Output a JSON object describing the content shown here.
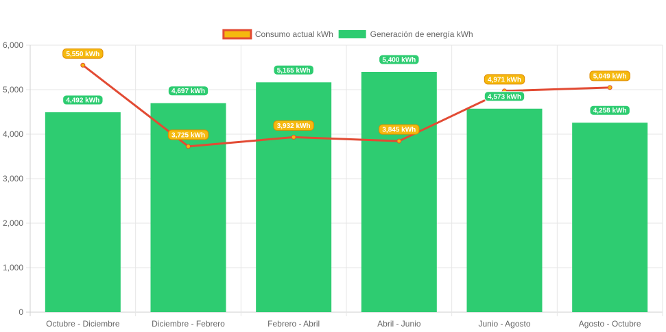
{
  "chart_data": {
    "type": "bar",
    "title": "",
    "xlabel": "",
    "ylabel": "",
    "categories": [
      "Octubre - Diciembre",
      "Diciembre - Febrero",
      "Febrero - Abril",
      "Abril - Junio",
      "Junio - Agosto",
      "Agosto - Octubre"
    ],
    "ylim": [
      0,
      6000
    ],
    "yticks": [
      "0",
      "1,000",
      "2,000",
      "3,000",
      "4,000",
      "5,000",
      "6,000"
    ],
    "grid": true,
    "legend_position": "top-center",
    "series": [
      {
        "name": "Consumo actual kWh",
        "type": "line",
        "color": "#e24b34",
        "fill": "#f5b90f",
        "values": [
          5550,
          3725,
          3932,
          3845,
          4971,
          5049
        ],
        "labels": [
          "5,550 kWh",
          "3,725 kWh",
          "3,932 kWh",
          "3,845 kWh",
          "4,971 kWh",
          "5,049 kWh"
        ]
      },
      {
        "name": "Generación de energía kWh",
        "type": "bar",
        "color": "#2ecc71",
        "values": [
          4492,
          4697,
          5165,
          5400,
          4573,
          4258
        ],
        "labels": [
          "4,492 kWh",
          "4,697 kWh",
          "5,165 kWh",
          "5,400 kWh",
          "4,573 kWh",
          "4,258 kWh"
        ]
      }
    ]
  }
}
